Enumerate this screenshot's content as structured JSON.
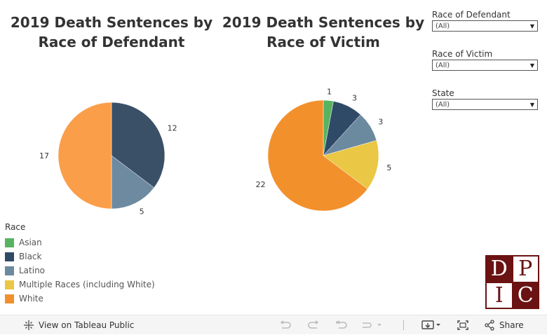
{
  "chart_data": [
    {
      "type": "pie",
      "title_lines": [
        "2019 Death Sentences by",
        "Race of Defendant"
      ],
      "slices": [
        {
          "label": "Black",
          "value": 12,
          "color": "#3a5067"
        },
        {
          "label": "Latino",
          "value": 5,
          "color": "#6d8aa0"
        },
        {
          "label": "White",
          "value": 17,
          "color": "#fb9e49"
        }
      ]
    },
    {
      "type": "pie",
      "title_lines": [
        "2019 Death Sentences by",
        "Race of Victim"
      ],
      "slices": [
        {
          "label": "Asian",
          "value": 1,
          "color": "#57b360"
        },
        {
          "label": "Black",
          "value": 3,
          "color": "#2f4a67"
        },
        {
          "label": "Latino",
          "value": 3,
          "color": "#6b8aa0"
        },
        {
          "label": "Multiple Races (including White)",
          "value": 5,
          "color": "#eac744"
        },
        {
          "label": "White",
          "value": 22,
          "color": "#f2902c"
        }
      ]
    }
  ],
  "filters": [
    {
      "label": "Race of Defendant",
      "value": "(All)"
    },
    {
      "label": "Race of Victim",
      "value": "(All)"
    },
    {
      "label": "State",
      "value": "(All)"
    }
  ],
  "legend": {
    "title": "Race",
    "items": [
      {
        "label": "Asian",
        "color": "#57b360"
      },
      {
        "label": "Black",
        "color": "#2f4a67"
      },
      {
        "label": "Latino",
        "color": "#6b8aa0"
      },
      {
        "label": "Multiple Races (including White)",
        "color": "#eac744"
      },
      {
        "label": "White",
        "color": "#f2902c"
      }
    ]
  },
  "logo": {
    "letters": [
      "D",
      "P",
      "I",
      "C"
    ]
  },
  "toolbar": {
    "view_label": "View on Tableau Public",
    "share_label": "Share"
  }
}
